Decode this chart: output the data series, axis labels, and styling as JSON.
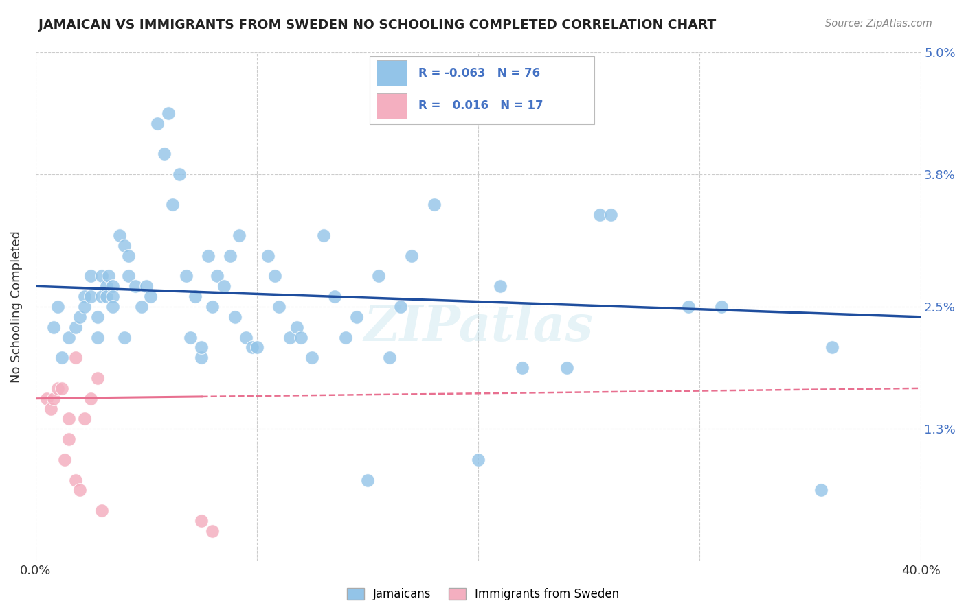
{
  "title": "JAMAICAN VS IMMIGRANTS FROM SWEDEN NO SCHOOLING COMPLETED CORRELATION CHART",
  "source_text": "Source: ZipAtlas.com",
  "ylabel": "No Schooling Completed",
  "xmin": 0.0,
  "xmax": 0.4,
  "ymin": 0.0,
  "ymax": 0.05,
  "yticks": [
    0.0,
    0.013,
    0.025,
    0.038,
    0.05
  ],
  "ytick_labels": [
    "",
    "1.3%",
    "2.5%",
    "3.8%",
    "5.0%"
  ],
  "xticks": [
    0.0,
    0.1,
    0.2,
    0.3,
    0.4
  ],
  "xtick_labels": [
    "0.0%",
    "",
    "",
    "",
    "40.0%"
  ],
  "blue_color": "#93c4e8",
  "pink_color": "#f4afc0",
  "line_blue": "#1f4e9e",
  "line_pink": "#e87090",
  "watermark": "ZIPatlas",
  "blue_line_start": 0.027,
  "blue_line_end": 0.024,
  "pink_line_start": 0.016,
  "pink_line_end": 0.017,
  "blue_x": [
    0.008,
    0.01,
    0.012,
    0.015,
    0.018,
    0.02,
    0.022,
    0.022,
    0.025,
    0.025,
    0.028,
    0.028,
    0.03,
    0.03,
    0.032,
    0.032,
    0.033,
    0.035,
    0.035,
    0.035,
    0.038,
    0.04,
    0.04,
    0.042,
    0.042,
    0.045,
    0.048,
    0.05,
    0.052,
    0.055,
    0.058,
    0.06,
    0.062,
    0.065,
    0.068,
    0.07,
    0.072,
    0.075,
    0.075,
    0.078,
    0.08,
    0.082,
    0.085,
    0.088,
    0.09,
    0.092,
    0.095,
    0.098,
    0.1,
    0.105,
    0.108,
    0.11,
    0.115,
    0.118,
    0.12,
    0.125,
    0.13,
    0.135,
    0.14,
    0.145,
    0.15,
    0.155,
    0.16,
    0.165,
    0.17,
    0.18,
    0.2,
    0.21,
    0.22,
    0.24,
    0.255,
    0.26,
    0.295,
    0.31,
    0.355,
    0.36
  ],
  "blue_y": [
    0.023,
    0.025,
    0.02,
    0.022,
    0.023,
    0.024,
    0.026,
    0.025,
    0.028,
    0.026,
    0.022,
    0.024,
    0.028,
    0.026,
    0.027,
    0.026,
    0.028,
    0.027,
    0.026,
    0.025,
    0.032,
    0.022,
    0.031,
    0.03,
    0.028,
    0.027,
    0.025,
    0.027,
    0.026,
    0.043,
    0.04,
    0.044,
    0.035,
    0.038,
    0.028,
    0.022,
    0.026,
    0.02,
    0.021,
    0.03,
    0.025,
    0.028,
    0.027,
    0.03,
    0.024,
    0.032,
    0.022,
    0.021,
    0.021,
    0.03,
    0.028,
    0.025,
    0.022,
    0.023,
    0.022,
    0.02,
    0.032,
    0.026,
    0.022,
    0.024,
    0.008,
    0.028,
    0.02,
    0.025,
    0.03,
    0.035,
    0.01,
    0.027,
    0.019,
    0.019,
    0.034,
    0.034,
    0.025,
    0.025,
    0.007,
    0.021
  ],
  "pink_x": [
    0.005,
    0.007,
    0.008,
    0.01,
    0.012,
    0.013,
    0.015,
    0.015,
    0.018,
    0.018,
    0.02,
    0.022,
    0.025,
    0.028,
    0.03,
    0.075,
    0.08
  ],
  "pink_y": [
    0.016,
    0.015,
    0.016,
    0.017,
    0.017,
    0.01,
    0.012,
    0.014,
    0.02,
    0.008,
    0.007,
    0.014,
    0.016,
    0.018,
    0.005,
    0.004,
    0.003
  ]
}
